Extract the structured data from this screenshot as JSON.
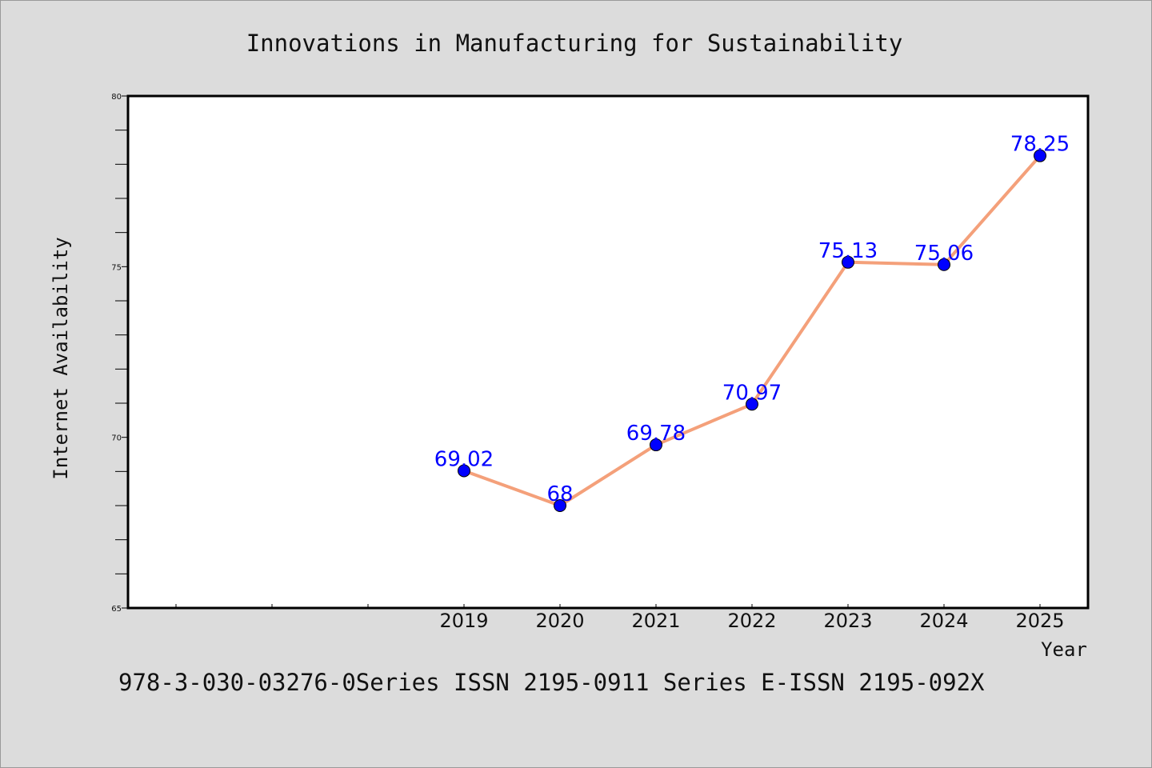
{
  "chart_data": {
    "type": "line",
    "title": "Innovations in Manufacturing for Sustainability",
    "xlabel": "Year",
    "ylabel": "Internet Availability",
    "x": [
      "2019",
      "2020",
      "2021",
      "2022",
      "2023",
      "2024",
      "2025"
    ],
    "series": [
      {
        "values": [
          69.02,
          68,
          69.78,
          70.97,
          75.13,
          75.06,
          78.25
        ],
        "value_labels": [
          "69.02",
          "68",
          "69.78",
          "70.97",
          "75.13",
          "75.06",
          "78.25"
        ],
        "line_color": "#f4a07a",
        "marker_color": "#0000ff"
      }
    ],
    "ylim": [
      65,
      80
    ],
    "yticks": [
      "65",
      "70",
      "75",
      "80"
    ],
    "grid": false,
    "background": "#dcdcdc",
    "plot_background": "#ffffff"
  },
  "caption": "978-3-030-03276-0Series ISSN 2195-0911 Series E-ISSN 2195-092X"
}
